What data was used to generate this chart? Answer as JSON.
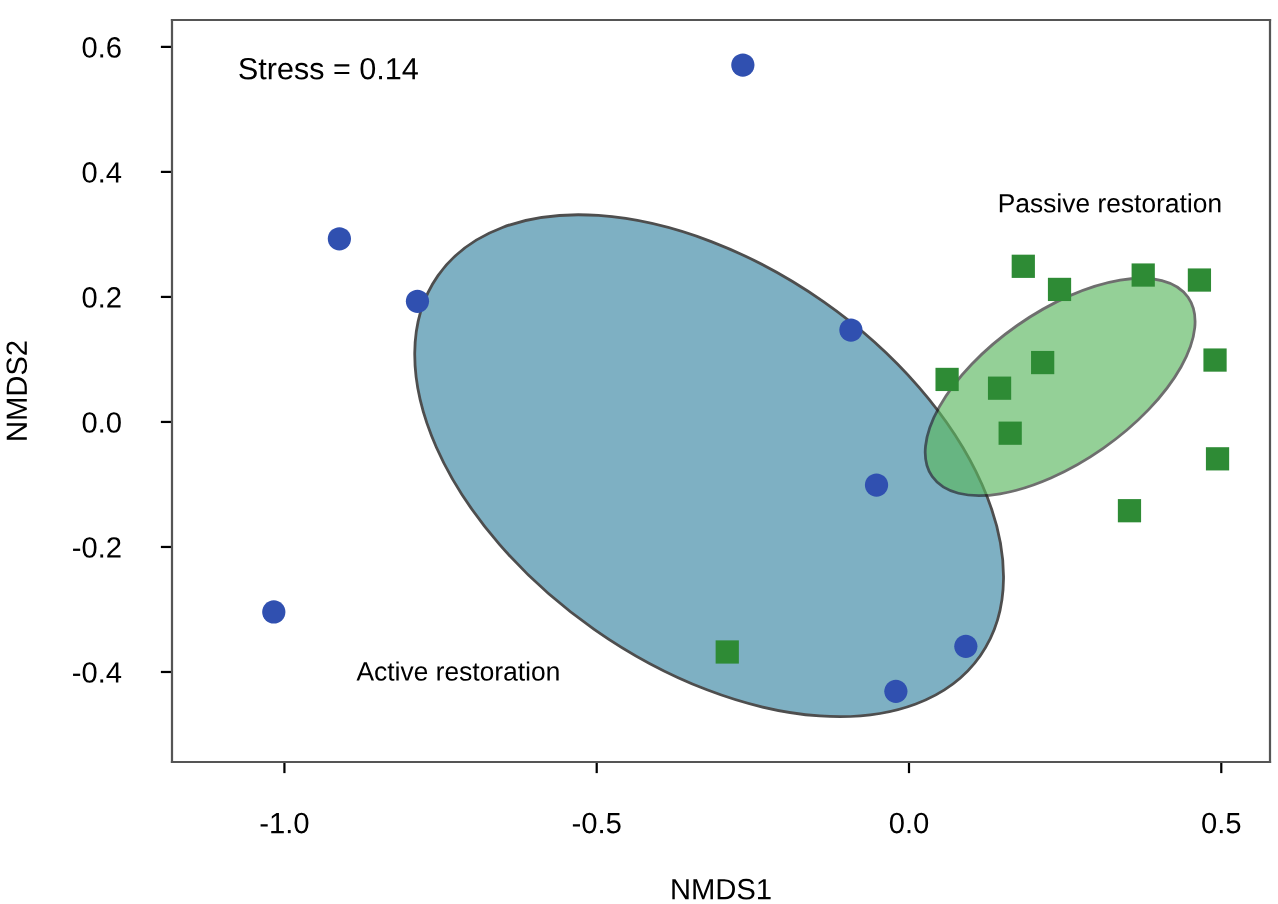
{
  "chart_data": {
    "type": "scatter",
    "xlabel": "NMDS1",
    "ylabel": "NMDS2",
    "annotations": [
      "Stress = 0.14",
      "Active restoration",
      "Passive restoration"
    ],
    "series": [
      {
        "color": "#3050b0",
        "marker": "circle",
        "x": [
          -0.912,
          -0.787,
          -1.017,
          -0.266,
          -0.093,
          -0.052,
          0.091,
          -0.021
        ],
        "values": [
          0.293,
          0.193,
          -0.304,
          0.571,
          0.147,
          -0.101,
          -0.359,
          -0.431
        ]
      },
      {
        "color": "#2e8b35",
        "marker": "square",
        "x": [
          0.183,
          0.241,
          0.375,
          0.465,
          0.49,
          0.214,
          0.061,
          0.145,
          0.162,
          0.494,
          0.353,
          -0.291
        ],
        "values": [
          0.249,
          0.212,
          0.235,
          0.227,
          0.099,
          0.095,
          0.068,
          0.054,
          -0.018,
          -0.059,
          -0.142,
          -0.368
        ]
      }
    ],
    "xlim": [
      -1.18,
      0.578
    ],
    "ylim": [
      -0.544,
      0.643
    ],
    "xticks": [
      {
        "value": -1.0,
        "label": "-1.0"
      },
      {
        "value": -0.5,
        "label": "-0.5"
      },
      {
        "value": 0.0,
        "label": "0.0"
      },
      {
        "value": 0.5,
        "label": "0.5"
      }
    ],
    "yticks": [
      {
        "value": -0.4,
        "label": "-0.4"
      },
      {
        "value": -0.2,
        "label": "-0.2"
      },
      {
        "value": 0.0,
        "label": "0.0"
      },
      {
        "value": 0.2,
        "label": "0.2"
      },
      {
        "value": 0.4,
        "label": "0.4"
      },
      {
        "value": 0.6,
        "label": "0.6"
      }
    ],
    "grid": false,
    "legend": false
  }
}
